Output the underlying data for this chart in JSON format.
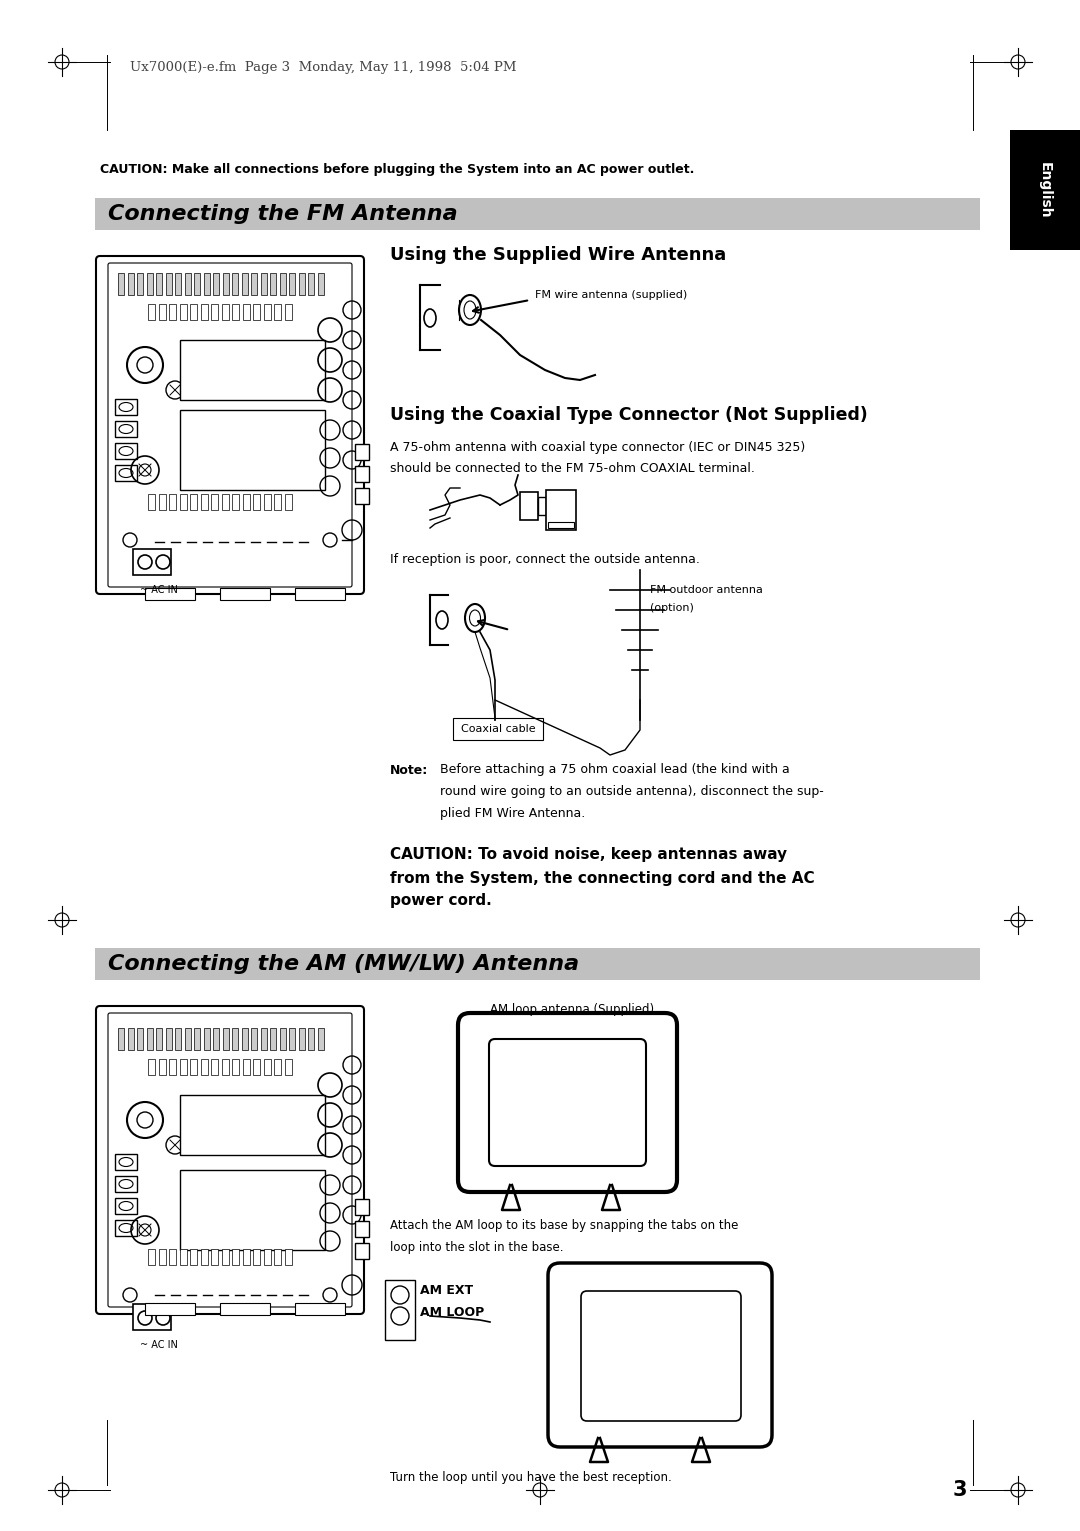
{
  "page_header": "Ux7000(E)-e.fm  Page 3  Monday, May 11, 1998  5:04 PM",
  "caution_top": "CAUTION: Make all connections before plugging the System into an AC power outlet.",
  "section1_title": "Connecting the FM Antenna",
  "section1_title_bg": "#c0c0c0",
  "english_tab_bg": "#000000",
  "english_tab_text": "English",
  "subsection1_title": "Using the Supplied Wire Antenna",
  "fm_wire_label": "FM wire antenna (supplied)",
  "subsection2_title": "Using the Coaxial Type Connector (Not Supplied)",
  "coaxial_text1": "A 75-ohm antenna with coaxial type connector (IEC or DIN45 325)",
  "coaxial_text2": "should be connected to the FM 75-ohm COAXIAL terminal.",
  "reception_text": "If reception is poor, connect the outside antenna.",
  "fm_outdoor_label1": "FM outdoor antenna",
  "fm_outdoor_label2": "(option)",
  "coaxial_cable_label": "Coaxial cable",
  "note_bold": "Note:",
  "note_text1": "Before attaching a 75 ohm coaxial lead (the kind with a",
  "note_text2": "round wire going to an outside antenna), disconnect the sup-",
  "note_text3": "plied FM Wire Antenna.",
  "caution_bottom1": "CAUTION: To avoid noise, keep antennas away",
  "caution_bottom2": "from the System, the connecting cord and the AC",
  "caution_bottom3": "power cord.",
  "section2_title": "Connecting the AM (MW/LW) Antenna",
  "section2_title_bg": "#c0c0c0",
  "am_loop_label": "AM loop antenna (Supplied)",
  "am_attach_text1": "Attach the AM loop to its base by snapping the tabs on the",
  "am_attach_text2": "loop into the slot in the base.",
  "am_ext_label": "AM EXT",
  "am_loop_label2": "AM LOOP",
  "turn_loop_text": "Turn the loop until you have the best reception.",
  "page_number": "3",
  "bg_color": "#ffffff",
  "text_color": "#000000",
  "gray_color": "#c0c0c0"
}
